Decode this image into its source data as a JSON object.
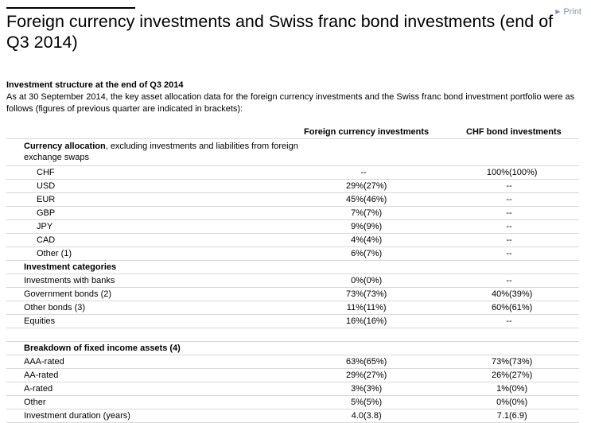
{
  "print_label": "Print",
  "title": "Foreign currency investments and Swiss franc bond investments (end of Q3 2014)",
  "subheading": "Investment structure at the end of Q3 2014",
  "intro": "As at 30 September 2014, the key asset allocation data for the foreign currency investments and the Swiss franc bond investment portfolio were as follows (figures of previous quarter are indicated in brackets):",
  "columns": {
    "fx": "Foreign currency investments",
    "chf": "CHF bond investments"
  },
  "currency": {
    "heading": "Currency allocation",
    "heading_note": ", excluding investments and liabilities from foreign exchange swaps",
    "rows": [
      {
        "label": "CHF",
        "fx": "-",
        "fx_prev": "-",
        "chf": "100%",
        "chf_prev": "(100%)"
      },
      {
        "label": "USD",
        "fx": "29%",
        "fx_prev": "(27%)",
        "chf": "-",
        "chf_prev": "-"
      },
      {
        "label": "EUR",
        "fx": "45%",
        "fx_prev": "(46%)",
        "chf": "-",
        "chf_prev": "-"
      },
      {
        "label": "GBP",
        "fx": "7%",
        "fx_prev": "(7%)",
        "chf": "-",
        "chf_prev": "-"
      },
      {
        "label": "JPY",
        "fx": "9%",
        "fx_prev": "(9%)",
        "chf": "-",
        "chf_prev": "-"
      },
      {
        "label": "CAD",
        "fx": "4%",
        "fx_prev": "(4%)",
        "chf": "-",
        "chf_prev": "-"
      },
      {
        "label": "Other (1)",
        "fx": "6%",
        "fx_prev": "(7%)",
        "chf": "-",
        "chf_prev": "-"
      }
    ]
  },
  "categories": {
    "heading": "Investment categories",
    "rows": [
      {
        "label": "Investments with banks",
        "fx": "0%",
        "fx_prev": "(0%)",
        "chf": "-",
        "chf_prev": "-"
      },
      {
        "label": "Government bonds (2)",
        "fx": "73%",
        "fx_prev": "(73%)",
        "chf": "40%",
        "chf_prev": "(39%)"
      },
      {
        "label": "Other bonds (3)",
        "fx": "11%",
        "fx_prev": "(11%)",
        "chf": "60%",
        "chf_prev": "(61%)"
      },
      {
        "label": "Equities",
        "fx": "16%",
        "fx_prev": "(16%)",
        "chf": "-",
        "chf_prev": "-"
      }
    ]
  },
  "fixed_income": {
    "heading": "Breakdown of fixed income assets (4)",
    "rows": [
      {
        "label": "AAA-rated",
        "fx": "63%",
        "fx_prev": "(65%)",
        "chf": "73%",
        "chf_prev": "(73%)"
      },
      {
        "label": "AA-rated",
        "fx": "29%",
        "fx_prev": "(27%)",
        "chf": "26%",
        "chf_prev": "(27%)"
      },
      {
        "label": "A-rated",
        "fx": "3%",
        "fx_prev": "(3%)",
        "chf": "1%",
        "chf_prev": "(0%)"
      },
      {
        "label": "Other",
        "fx": "5%",
        "fx_prev": "(5%)",
        "chf": "0%",
        "chf_prev": "(0%)"
      },
      {
        "label": "Investment duration (years)",
        "fx": "4.0",
        "fx_prev": "(3.8)",
        "chf": "7.1",
        "chf_prev": "(6.9)"
      }
    ]
  }
}
